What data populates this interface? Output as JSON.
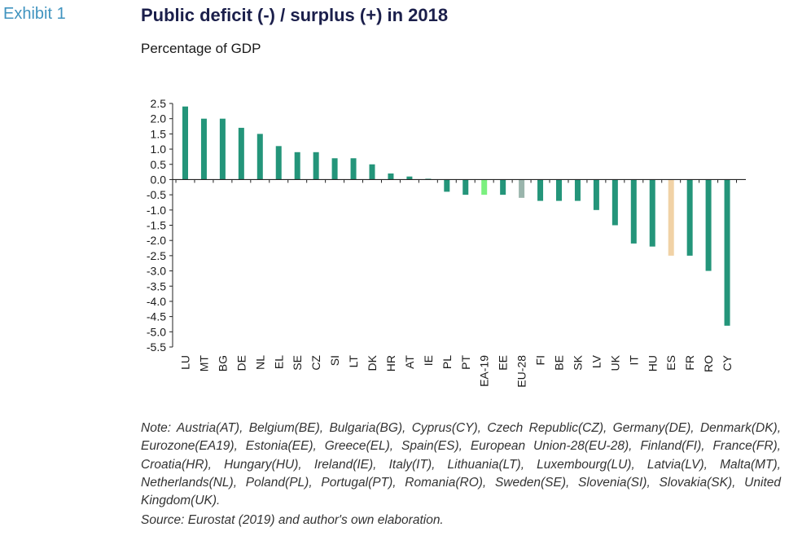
{
  "header": {
    "exhibit": "Exhibit 1",
    "title": "Public deficit (-) / surplus (+) in 2018",
    "subtitle": "Percentage of GDP"
  },
  "note": "Note: Austria(AT), Belgium(BE), Bulgaria(BG), Cyprus(CY), Czech Republic(CZ), Germany(DE), Denmark(DK), Eurozone(EA19), Estonia(EE), Greece(EL), Spain(ES), European Union-28(EU-28), Finland(FI), France(FR), Croatia(HR), Hungary(HU), Ireland(IE), Italy(IT), Lithuania(LT), Luxembourg(LU), Latvia(LV), Malta(MT), Netherlands(NL), Poland(PL), Portugal(PT), Romania(RO), Sweden(SE), Slovenia(SI), Slovakia(SK), United Kingdom(UK).",
  "source": "Source: Eurostat (2019) and author's own elaboration.",
  "colors": {
    "default_bar": "#24957a",
    "ea19_bar": "#7bf07f",
    "eu28_bar": "#9ab5ac",
    "es_bar": "#f1d2a6",
    "title": "#1b1f4b",
    "exhibit": "#3f93bf"
  },
  "chart_data": {
    "type": "bar",
    "categories": [
      "LU",
      "MT",
      "BG",
      "DE",
      "NL",
      "EL",
      "SE",
      "CZ",
      "SI",
      "LT",
      "DK",
      "HR",
      "AT",
      "IE",
      "PL",
      "PT",
      "EA-19",
      "EE",
      "EU-28",
      "FI",
      "BE",
      "SK",
      "LV",
      "UK",
      "IT",
      "HU",
      "ES",
      "FR",
      "RO",
      "CY"
    ],
    "values": [
      2.4,
      2.0,
      2.0,
      1.7,
      1.5,
      1.1,
      0.9,
      0.9,
      0.7,
      0.7,
      0.5,
      0.2,
      0.1,
      0.0,
      -0.4,
      -0.5,
      -0.5,
      -0.5,
      -0.6,
      -0.7,
      -0.7,
      -0.7,
      -1.0,
      -1.5,
      -2.1,
      -2.2,
      -2.5,
      -2.5,
      -3.0,
      -4.8
    ],
    "highlight": {
      "EA-19": "#7bf07f",
      "EU-28": "#9ab5ac",
      "ES": "#f1d2a6"
    },
    "ylim": [
      -5.5,
      2.5
    ],
    "yticks": [
      "2.5",
      "2.0",
      "1.5",
      "1.0",
      "0.5",
      "0.0",
      "-0.5",
      "-1.0",
      "-1.5",
      "-2.0",
      "-2.5",
      "-3.0",
      "-3.5",
      "-4.0",
      "-4.5",
      "-5.0",
      "-5.5"
    ],
    "title": "Public deficit (-) / surplus (+) in 2018",
    "xlabel": "",
    "ylabel": "",
    "grid": false
  }
}
